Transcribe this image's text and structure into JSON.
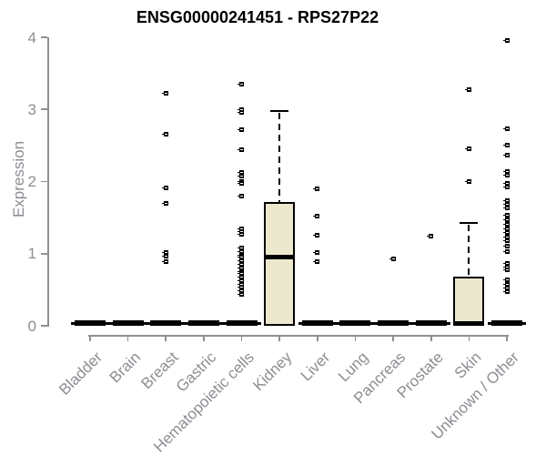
{
  "chart_data": {
    "type": "boxplot",
    "title": "ENSG00000241451 - RPS27P22",
    "ylabel": "Expression",
    "xlabel": "",
    "ylim": [
      0,
      4
    ],
    "yticks": [
      "0",
      "1",
      "2",
      "3",
      "4"
    ],
    "grid": false,
    "legend": "none",
    "box_fill_color": "#ece8ce",
    "box_line_color": "#000000",
    "axis_color": "#909090",
    "tick_label_color": "#8c8e93",
    "categories": [
      "Bladder",
      "Brain",
      "Breast",
      "Gastric",
      "Hematopoietic cells",
      "Kidney",
      "Liver",
      "Lung",
      "Pancreas",
      "Prostate",
      "Skin",
      "Unknown / Other"
    ],
    "series": [
      {
        "category": "Bladder",
        "min": 0,
        "q1": 0,
        "median": 0,
        "q3": 0,
        "max": 0,
        "outliers": []
      },
      {
        "category": "Brain",
        "min": 0,
        "q1": 0,
        "median": 0,
        "q3": 0,
        "max": 0,
        "outliers": []
      },
      {
        "category": "Breast",
        "min": 0,
        "q1": 0,
        "median": 0,
        "q3": 0,
        "max": 0,
        "outliers": [
          3.22,
          2.65,
          1.91,
          1.7,
          1.02,
          0.96,
          0.89
        ]
      },
      {
        "category": "Gastric",
        "min": 0,
        "q1": 0,
        "median": 0,
        "q3": 0,
        "max": 0,
        "outliers": []
      },
      {
        "category": "Hematopoietic cells",
        "min": 0,
        "q1": 0,
        "median": 0,
        "q3": 0,
        "max": 0,
        "outliers": [
          3.35,
          3.0,
          2.96,
          2.72,
          2.44,
          2.13,
          2.08,
          2.0,
          1.97,
          1.8,
          1.34,
          1.3,
          1.27,
          1.08,
          1.03,
          0.98,
          0.95,
          0.9,
          0.85,
          0.8,
          0.75,
          0.72,
          0.68,
          0.63,
          0.58,
          0.53,
          0.48,
          0.44
        ]
      },
      {
        "category": "Kidney",
        "min": 0,
        "q1": 0,
        "median": 0.95,
        "q3": 1.72,
        "max": 2.98,
        "outliers": []
      },
      {
        "category": "Liver",
        "min": 0,
        "q1": 0,
        "median": 0,
        "q3": 0,
        "max": 0,
        "outliers": [
          1.9,
          1.52,
          1.25,
          1.01,
          0.89
        ]
      },
      {
        "category": "Lung",
        "min": 0,
        "q1": 0,
        "median": 0,
        "q3": 0,
        "max": 0,
        "outliers": []
      },
      {
        "category": "Pancreas",
        "min": 0,
        "q1": 0,
        "median": 0,
        "q3": 0,
        "max": 0,
        "outliers": [
          0.93
        ]
      },
      {
        "category": "Prostate",
        "min": 0,
        "q1": 0,
        "median": 0,
        "q3": 0,
        "max": 0,
        "outliers": [
          1.24
        ]
      },
      {
        "category": "Skin",
        "min": 0,
        "q1": 0,
        "median": 0,
        "q3": 0.68,
        "max": 1.42,
        "outliers": [
          3.27,
          2.45,
          2.0
        ]
      },
      {
        "category": "Unknown / Other",
        "min": 0,
        "q1": 0,
        "median": 0,
        "q3": 0,
        "max": 0,
        "outliers": [
          3.95,
          2.73,
          2.5,
          2.37,
          2.14,
          2.09,
          1.97,
          1.93,
          1.74,
          1.68,
          1.63,
          1.53,
          1.47,
          1.41,
          1.35,
          1.29,
          1.23,
          1.18,
          1.1,
          1.03,
          0.87,
          0.82,
          0.78,
          0.64,
          0.58,
          0.52,
          0.47
        ]
      }
    ]
  }
}
